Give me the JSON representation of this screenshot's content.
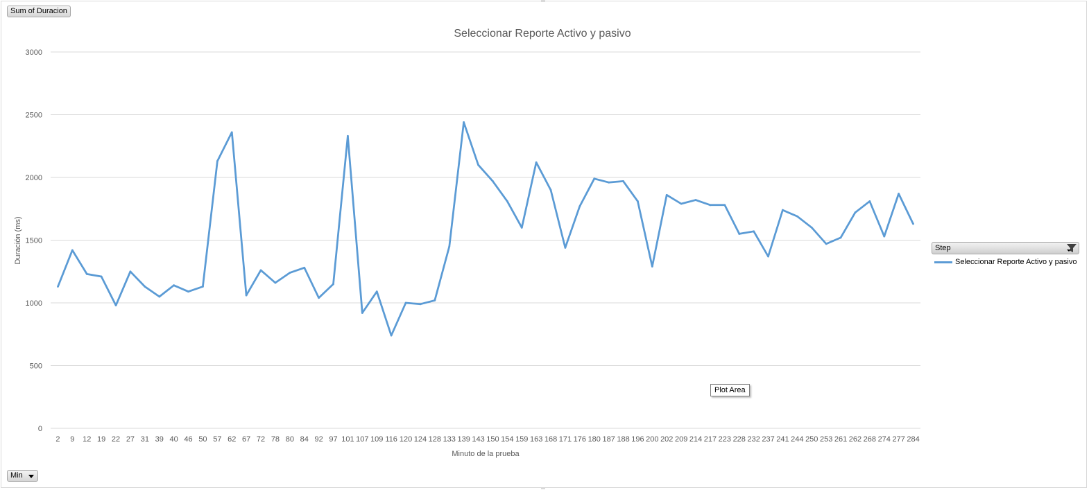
{
  "pivot": {
    "value_field": "Sum of Duracion",
    "filter_field": "Min",
    "legend_field": "Step",
    "tooltip": "Plot Area"
  },
  "colors": {
    "series": "#5b9bd5",
    "grid": "#d9d9d9",
    "text": "#595959"
  },
  "legend": {
    "position": "right",
    "field": "Step"
  },
  "chart_data": {
    "type": "line",
    "title": "Seleccionar Reporte Activo y pasivo",
    "xlabel": "Minuto de la prueba",
    "ylabel": "Duración (ms)",
    "ylim": [
      0,
      3000
    ],
    "yticks": [
      0,
      500,
      1000,
      1500,
      2000,
      2500,
      3000
    ],
    "grid": true,
    "categories": [
      "2",
      "9",
      "12",
      "19",
      "22",
      "27",
      "31",
      "39",
      "40",
      "46",
      "50",
      "57",
      "62",
      "67",
      "72",
      "78",
      "80",
      "84",
      "92",
      "97",
      "101",
      "107",
      "109",
      "116",
      "120",
      "124",
      "128",
      "133",
      "139",
      "143",
      "150",
      "154",
      "159",
      "163",
      "168",
      "171",
      "176",
      "180",
      "187",
      "188",
      "196",
      "200",
      "202",
      "209",
      "214",
      "217",
      "223",
      "228",
      "232",
      "237",
      "241",
      "244",
      "250",
      "253",
      "261",
      "262",
      "268",
      "274",
      "277",
      "284"
    ],
    "series": [
      {
        "name": "Seleccionar Reporte Activo y pasivo",
        "values": [
          1130,
          1420,
          1230,
          1210,
          980,
          1250,
          1130,
          1050,
          1140,
          1090,
          1130,
          2130,
          2360,
          1060,
          1260,
          1160,
          1240,
          1280,
          1040,
          1150,
          2330,
          920,
          1090,
          740,
          1000,
          990,
          1020,
          1450,
          2440,
          2100,
          1970,
          1810,
          1600,
          2120,
          1900,
          1440,
          1770,
          1990,
          1960,
          1970,
          1810,
          1290,
          1860,
          1790,
          1820,
          1780,
          1780,
          1550,
          1570,
          1370,
          1740,
          1690,
          1600,
          1470,
          1520,
          1720,
          1810,
          1530,
          1870,
          1630
        ]
      }
    ]
  }
}
